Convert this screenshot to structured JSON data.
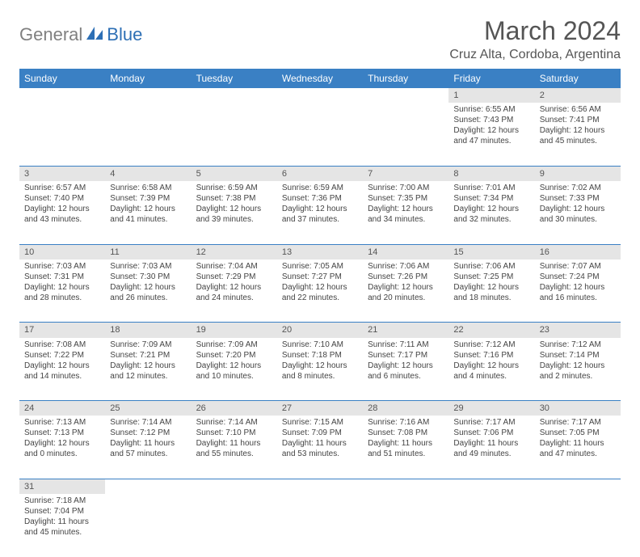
{
  "logo": {
    "gray": "General",
    "blue": "Blue"
  },
  "title": "March 2024",
  "location": "Cruz Alta, Cordoba, Argentina",
  "colors": {
    "header_bg": "#3a80c4",
    "header_text": "#ffffff",
    "daynum_bg": "#e5e5e5",
    "border": "#3a80c4",
    "logo_gray": "#808080",
    "logo_blue": "#2d6fb5"
  },
  "weekdays": [
    "Sunday",
    "Monday",
    "Tuesday",
    "Wednesday",
    "Thursday",
    "Friday",
    "Saturday"
  ],
  "weeks": [
    {
      "nums": [
        "",
        "",
        "",
        "",
        "",
        "1",
        "2"
      ],
      "cells": [
        null,
        null,
        null,
        null,
        null,
        {
          "sunrise": "Sunrise: 6:55 AM",
          "sunset": "Sunset: 7:43 PM",
          "day1": "Daylight: 12 hours",
          "day2": "and 47 minutes."
        },
        {
          "sunrise": "Sunrise: 6:56 AM",
          "sunset": "Sunset: 7:41 PM",
          "day1": "Daylight: 12 hours",
          "day2": "and 45 minutes."
        }
      ]
    },
    {
      "nums": [
        "3",
        "4",
        "5",
        "6",
        "7",
        "8",
        "9"
      ],
      "cells": [
        {
          "sunrise": "Sunrise: 6:57 AM",
          "sunset": "Sunset: 7:40 PM",
          "day1": "Daylight: 12 hours",
          "day2": "and 43 minutes."
        },
        {
          "sunrise": "Sunrise: 6:58 AM",
          "sunset": "Sunset: 7:39 PM",
          "day1": "Daylight: 12 hours",
          "day2": "and 41 minutes."
        },
        {
          "sunrise": "Sunrise: 6:59 AM",
          "sunset": "Sunset: 7:38 PM",
          "day1": "Daylight: 12 hours",
          "day2": "and 39 minutes."
        },
        {
          "sunrise": "Sunrise: 6:59 AM",
          "sunset": "Sunset: 7:36 PM",
          "day1": "Daylight: 12 hours",
          "day2": "and 37 minutes."
        },
        {
          "sunrise": "Sunrise: 7:00 AM",
          "sunset": "Sunset: 7:35 PM",
          "day1": "Daylight: 12 hours",
          "day2": "and 34 minutes."
        },
        {
          "sunrise": "Sunrise: 7:01 AM",
          "sunset": "Sunset: 7:34 PM",
          "day1": "Daylight: 12 hours",
          "day2": "and 32 minutes."
        },
        {
          "sunrise": "Sunrise: 7:02 AM",
          "sunset": "Sunset: 7:33 PM",
          "day1": "Daylight: 12 hours",
          "day2": "and 30 minutes."
        }
      ]
    },
    {
      "nums": [
        "10",
        "11",
        "12",
        "13",
        "14",
        "15",
        "16"
      ],
      "cells": [
        {
          "sunrise": "Sunrise: 7:03 AM",
          "sunset": "Sunset: 7:31 PM",
          "day1": "Daylight: 12 hours",
          "day2": "and 28 minutes."
        },
        {
          "sunrise": "Sunrise: 7:03 AM",
          "sunset": "Sunset: 7:30 PM",
          "day1": "Daylight: 12 hours",
          "day2": "and 26 minutes."
        },
        {
          "sunrise": "Sunrise: 7:04 AM",
          "sunset": "Sunset: 7:29 PM",
          "day1": "Daylight: 12 hours",
          "day2": "and 24 minutes."
        },
        {
          "sunrise": "Sunrise: 7:05 AM",
          "sunset": "Sunset: 7:27 PM",
          "day1": "Daylight: 12 hours",
          "day2": "and 22 minutes."
        },
        {
          "sunrise": "Sunrise: 7:06 AM",
          "sunset": "Sunset: 7:26 PM",
          "day1": "Daylight: 12 hours",
          "day2": "and 20 minutes."
        },
        {
          "sunrise": "Sunrise: 7:06 AM",
          "sunset": "Sunset: 7:25 PM",
          "day1": "Daylight: 12 hours",
          "day2": "and 18 minutes."
        },
        {
          "sunrise": "Sunrise: 7:07 AM",
          "sunset": "Sunset: 7:24 PM",
          "day1": "Daylight: 12 hours",
          "day2": "and 16 minutes."
        }
      ]
    },
    {
      "nums": [
        "17",
        "18",
        "19",
        "20",
        "21",
        "22",
        "23"
      ],
      "cells": [
        {
          "sunrise": "Sunrise: 7:08 AM",
          "sunset": "Sunset: 7:22 PM",
          "day1": "Daylight: 12 hours",
          "day2": "and 14 minutes."
        },
        {
          "sunrise": "Sunrise: 7:09 AM",
          "sunset": "Sunset: 7:21 PM",
          "day1": "Daylight: 12 hours",
          "day2": "and 12 minutes."
        },
        {
          "sunrise": "Sunrise: 7:09 AM",
          "sunset": "Sunset: 7:20 PM",
          "day1": "Daylight: 12 hours",
          "day2": "and 10 minutes."
        },
        {
          "sunrise": "Sunrise: 7:10 AM",
          "sunset": "Sunset: 7:18 PM",
          "day1": "Daylight: 12 hours",
          "day2": "and 8 minutes."
        },
        {
          "sunrise": "Sunrise: 7:11 AM",
          "sunset": "Sunset: 7:17 PM",
          "day1": "Daylight: 12 hours",
          "day2": "and 6 minutes."
        },
        {
          "sunrise": "Sunrise: 7:12 AM",
          "sunset": "Sunset: 7:16 PM",
          "day1": "Daylight: 12 hours",
          "day2": "and 4 minutes."
        },
        {
          "sunrise": "Sunrise: 7:12 AM",
          "sunset": "Sunset: 7:14 PM",
          "day1": "Daylight: 12 hours",
          "day2": "and 2 minutes."
        }
      ]
    },
    {
      "nums": [
        "24",
        "25",
        "26",
        "27",
        "28",
        "29",
        "30"
      ],
      "cells": [
        {
          "sunrise": "Sunrise: 7:13 AM",
          "sunset": "Sunset: 7:13 PM",
          "day1": "Daylight: 12 hours",
          "day2": "and 0 minutes."
        },
        {
          "sunrise": "Sunrise: 7:14 AM",
          "sunset": "Sunset: 7:12 PM",
          "day1": "Daylight: 11 hours",
          "day2": "and 57 minutes."
        },
        {
          "sunrise": "Sunrise: 7:14 AM",
          "sunset": "Sunset: 7:10 PM",
          "day1": "Daylight: 11 hours",
          "day2": "and 55 minutes."
        },
        {
          "sunrise": "Sunrise: 7:15 AM",
          "sunset": "Sunset: 7:09 PM",
          "day1": "Daylight: 11 hours",
          "day2": "and 53 minutes."
        },
        {
          "sunrise": "Sunrise: 7:16 AM",
          "sunset": "Sunset: 7:08 PM",
          "day1": "Daylight: 11 hours",
          "day2": "and 51 minutes."
        },
        {
          "sunrise": "Sunrise: 7:17 AM",
          "sunset": "Sunset: 7:06 PM",
          "day1": "Daylight: 11 hours",
          "day2": "and 49 minutes."
        },
        {
          "sunrise": "Sunrise: 7:17 AM",
          "sunset": "Sunset: 7:05 PM",
          "day1": "Daylight: 11 hours",
          "day2": "and 47 minutes."
        }
      ]
    },
    {
      "nums": [
        "31",
        "",
        "",
        "",
        "",
        "",
        ""
      ],
      "cells": [
        {
          "sunrise": "Sunrise: 7:18 AM",
          "sunset": "Sunset: 7:04 PM",
          "day1": "Daylight: 11 hours",
          "day2": "and 45 minutes."
        },
        null,
        null,
        null,
        null,
        null,
        null
      ]
    }
  ]
}
